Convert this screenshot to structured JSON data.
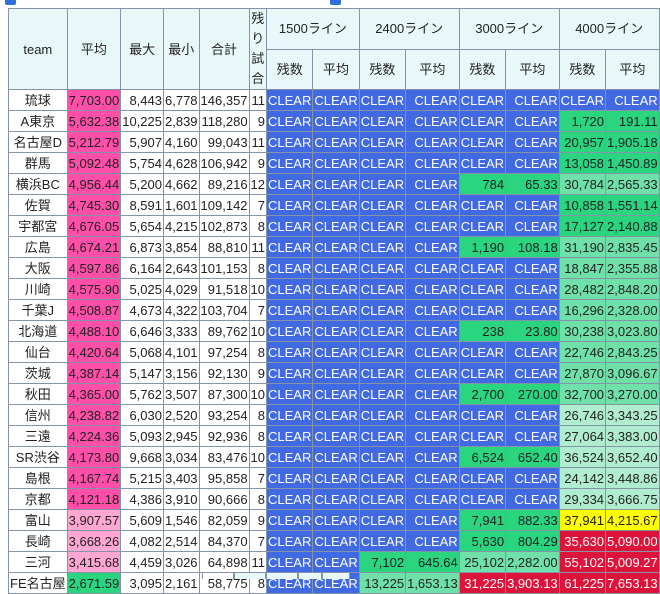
{
  "colors": {
    "blue": "#4169e1",
    "green": "#2bd580",
    "mid": "#6fe1a8",
    "pale": "#b0edcf",
    "yellow": "#ffff00",
    "red": "#dc143c",
    "pink": "#ff4fa8",
    "lightpink": "#ffa6d2",
    "header": "#e8f8f8"
  },
  "header": {
    "team": "team",
    "avg": "平均",
    "max": "最大",
    "min": "最小",
    "total": "合計",
    "remaining": "残り試合",
    "lines": [
      "1500ライン",
      "2400ライン",
      "3000ライン",
      "4000ライン"
    ],
    "count": "残数",
    "line_avg": "平均"
  },
  "rows": [
    {
      "team": "琉球",
      "avg": "7,703.00",
      "avg_color": "pink",
      "max": "8,443",
      "min": "6,778",
      "total": "146,357",
      "remaining": "11",
      "lines": [
        [
          "CLEAR",
          "CLEAR",
          "blue"
        ],
        [
          "CLEAR",
          "CLEAR",
          "blue"
        ],
        [
          "CLEAR",
          "CLEAR",
          "blue"
        ],
        [
          "CLEAR",
          "CLEAR",
          "blue"
        ]
      ]
    },
    {
      "team": "A東京",
      "avg": "5,632.38",
      "avg_color": "pink",
      "max": "10,225",
      "min": "2,839",
      "total": "118,280",
      "remaining": "9",
      "lines": [
        [
          "CLEAR",
          "CLEAR",
          "blue"
        ],
        [
          "CLEAR",
          "CLEAR",
          "blue"
        ],
        [
          "CLEAR",
          "CLEAR",
          "blue"
        ],
        [
          "1,720",
          "191.11",
          "green"
        ]
      ]
    },
    {
      "team": "名古屋D",
      "avg": "5,212.79",
      "avg_color": "pink",
      "max": "5,907",
      "min": "4,160",
      "total": "99,043",
      "remaining": "11",
      "lines": [
        [
          "CLEAR",
          "CLEAR",
          "blue"
        ],
        [
          "CLEAR",
          "CLEAR",
          "blue"
        ],
        [
          "CLEAR",
          "CLEAR",
          "blue"
        ],
        [
          "20,957",
          "1,905.18",
          "green"
        ]
      ]
    },
    {
      "team": "群馬",
      "avg": "5,092.48",
      "avg_color": "pink",
      "max": "5,754",
      "min": "4,628",
      "total": "106,942",
      "remaining": "9",
      "lines": [
        [
          "CLEAR",
          "CLEAR",
          "blue"
        ],
        [
          "CLEAR",
          "CLEAR",
          "blue"
        ],
        [
          "CLEAR",
          "CLEAR",
          "blue"
        ],
        [
          "13,058",
          "1,450.89",
          "green"
        ]
      ]
    },
    {
      "team": "横浜BC",
      "avg": "4,956.44",
      "avg_color": "pink",
      "max": "5,200",
      "min": "4,662",
      "total": "89,216",
      "remaining": "12",
      "lines": [
        [
          "CLEAR",
          "CLEAR",
          "blue"
        ],
        [
          "CLEAR",
          "CLEAR",
          "blue"
        ],
        [
          "784",
          "65.33",
          "green"
        ],
        [
          "30,784",
          "2,565.33",
          "mid"
        ]
      ]
    },
    {
      "team": "佐賀",
      "avg": "4,745.30",
      "avg_color": "pink",
      "max": "8,591",
      "min": "1,601",
      "total": "109,142",
      "remaining": "7",
      "lines": [
        [
          "CLEAR",
          "CLEAR",
          "blue"
        ],
        [
          "CLEAR",
          "CLEAR",
          "blue"
        ],
        [
          "CLEAR",
          "CLEAR",
          "blue"
        ],
        [
          "10,858",
          "1,551.14",
          "green"
        ]
      ]
    },
    {
      "team": "宇都宮",
      "avg": "4,676.05",
      "avg_color": "pink",
      "max": "5,654",
      "min": "4,215",
      "total": "102,873",
      "remaining": "8",
      "lines": [
        [
          "CLEAR",
          "CLEAR",
          "blue"
        ],
        [
          "CLEAR",
          "CLEAR",
          "blue"
        ],
        [
          "CLEAR",
          "CLEAR",
          "blue"
        ],
        [
          "17,127",
          "2,140.88",
          "green"
        ]
      ]
    },
    {
      "team": "広島",
      "avg": "4,674.21",
      "avg_color": "pink",
      "max": "6,873",
      "min": "3,854",
      "total": "88,810",
      "remaining": "11",
      "lines": [
        [
          "CLEAR",
          "CLEAR",
          "blue"
        ],
        [
          "CLEAR",
          "CLEAR",
          "blue"
        ],
        [
          "1,190",
          "108.18",
          "green"
        ],
        [
          "31,190",
          "2,835.45",
          "mid"
        ]
      ]
    },
    {
      "team": "大阪",
      "avg": "4,597.86",
      "avg_color": "pink",
      "max": "6,164",
      "min": "2,643",
      "total": "101,153",
      "remaining": "8",
      "lines": [
        [
          "CLEAR",
          "CLEAR",
          "blue"
        ],
        [
          "CLEAR",
          "CLEAR",
          "blue"
        ],
        [
          "CLEAR",
          "CLEAR",
          "blue"
        ],
        [
          "18,847",
          "2,355.88",
          "mid"
        ]
      ]
    },
    {
      "team": "川崎",
      "avg": "4,575.90",
      "avg_color": "pink",
      "max": "5,025",
      "min": "4,029",
      "total": "91,518",
      "remaining": "10",
      "lines": [
        [
          "CLEAR",
          "CLEAR",
          "blue"
        ],
        [
          "CLEAR",
          "CLEAR",
          "blue"
        ],
        [
          "CLEAR",
          "CLEAR",
          "blue"
        ],
        [
          "28,482",
          "2,848.20",
          "mid"
        ]
      ]
    },
    {
      "team": "千葉J",
      "avg": "4,508.87",
      "avg_color": "pink",
      "max": "4,673",
      "min": "4,322",
      "total": "103,704",
      "remaining": "7",
      "lines": [
        [
          "CLEAR",
          "CLEAR",
          "blue"
        ],
        [
          "CLEAR",
          "CLEAR",
          "blue"
        ],
        [
          "CLEAR",
          "CLEAR",
          "blue"
        ],
        [
          "16,296",
          "2,328.00",
          "mid"
        ]
      ]
    },
    {
      "team": "北海道",
      "avg": "4,488.10",
      "avg_color": "pink",
      "max": "6,646",
      "min": "3,333",
      "total": "89,762",
      "remaining": "10",
      "lines": [
        [
          "CLEAR",
          "CLEAR",
          "blue"
        ],
        [
          "CLEAR",
          "CLEAR",
          "blue"
        ],
        [
          "238",
          "23.80",
          "green"
        ],
        [
          "30,238",
          "3,023.80",
          "mid"
        ]
      ]
    },
    {
      "team": "仙台",
      "avg": "4,420.64",
      "avg_color": "pink",
      "max": "5,068",
      "min": "4,101",
      "total": "97,254",
      "remaining": "8",
      "lines": [
        [
          "CLEAR",
          "CLEAR",
          "blue"
        ],
        [
          "CLEAR",
          "CLEAR",
          "blue"
        ],
        [
          "CLEAR",
          "CLEAR",
          "blue"
        ],
        [
          "22,746",
          "2,843.25",
          "mid"
        ]
      ]
    },
    {
      "team": "茨城",
      "avg": "4,387.14",
      "avg_color": "pink",
      "max": "5,147",
      "min": "3,156",
      "total": "92,130",
      "remaining": "9",
      "lines": [
        [
          "CLEAR",
          "CLEAR",
          "blue"
        ],
        [
          "CLEAR",
          "CLEAR",
          "blue"
        ],
        [
          "CLEAR",
          "CLEAR",
          "blue"
        ],
        [
          "27,870",
          "3,096.67",
          "mid"
        ]
      ]
    },
    {
      "team": "秋田",
      "avg": "4,365.00",
      "avg_color": "pink",
      "max": "5,762",
      "min": "3,507",
      "total": "87,300",
      "remaining": "10",
      "lines": [
        [
          "CLEAR",
          "CLEAR",
          "blue"
        ],
        [
          "CLEAR",
          "CLEAR",
          "blue"
        ],
        [
          "2,700",
          "270.00",
          "green"
        ],
        [
          "32,700",
          "3,270.00",
          "mid"
        ]
      ]
    },
    {
      "team": "信州",
      "avg": "4,238.82",
      "avg_color": "pink",
      "max": "6,030",
      "min": "2,520",
      "total": "93,254",
      "remaining": "8",
      "lines": [
        [
          "CLEAR",
          "CLEAR",
          "blue"
        ],
        [
          "CLEAR",
          "CLEAR",
          "blue"
        ],
        [
          "CLEAR",
          "CLEAR",
          "blue"
        ],
        [
          "26,746",
          "3,343.25",
          "pale"
        ]
      ]
    },
    {
      "team": "三遠",
      "avg": "4,224.36",
      "avg_color": "pink",
      "max": "5,093",
      "min": "2,945",
      "total": "92,936",
      "remaining": "8",
      "lines": [
        [
          "CLEAR",
          "CLEAR",
          "blue"
        ],
        [
          "CLEAR",
          "CLEAR",
          "blue"
        ],
        [
          "CLEAR",
          "CLEAR",
          "blue"
        ],
        [
          "27,064",
          "3,383.00",
          "pale"
        ]
      ]
    },
    {
      "team": "SR渋谷",
      "avg": "4,173.80",
      "avg_color": "pink",
      "max": "9,668",
      "min": "3,034",
      "total": "83,476",
      "remaining": "10",
      "lines": [
        [
          "CLEAR",
          "CLEAR",
          "blue"
        ],
        [
          "CLEAR",
          "CLEAR",
          "blue"
        ],
        [
          "6,524",
          "652.40",
          "green"
        ],
        [
          "36,524",
          "3,652.40",
          "pale"
        ]
      ]
    },
    {
      "team": "島根",
      "avg": "4,167.74",
      "avg_color": "pink",
      "max": "5,215",
      "min": "3,403",
      "total": "95,858",
      "remaining": "7",
      "lines": [
        [
          "CLEAR",
          "CLEAR",
          "blue"
        ],
        [
          "CLEAR",
          "CLEAR",
          "blue"
        ],
        [
          "CLEAR",
          "CLEAR",
          "blue"
        ],
        [
          "24,142",
          "3,448.86",
          "pale"
        ]
      ]
    },
    {
      "team": "京都",
      "avg": "4,121.18",
      "avg_color": "pink",
      "max": "4,386",
      "min": "3,910",
      "total": "90,666",
      "remaining": "8",
      "lines": [
        [
          "CLEAR",
          "CLEAR",
          "blue"
        ],
        [
          "CLEAR",
          "CLEAR",
          "blue"
        ],
        [
          "CLEAR",
          "CLEAR",
          "blue"
        ],
        [
          "29,334",
          "3,666.75",
          "pale"
        ]
      ]
    },
    {
      "team": "富山",
      "avg": "3,907.57",
      "avg_color": "lightpink",
      "max": "5,609",
      "min": "1,546",
      "total": "82,059",
      "remaining": "9",
      "lines": [
        [
          "CLEAR",
          "CLEAR",
          "blue"
        ],
        [
          "CLEAR",
          "CLEAR",
          "blue"
        ],
        [
          "7,941",
          "882.33",
          "green"
        ],
        [
          "37,941",
          "4,215.67",
          "yellow"
        ]
      ]
    },
    {
      "team": "長崎",
      "avg": "3,668.26",
      "avg_color": "lightpink",
      "max": "4,082",
      "min": "2,514",
      "total": "84,370",
      "remaining": "7",
      "lines": [
        [
          "CLEAR",
          "CLEAR",
          "blue"
        ],
        [
          "CLEAR",
          "CLEAR",
          "blue"
        ],
        [
          "5,630",
          "804.29",
          "green"
        ],
        [
          "35,630",
          "5,090.00",
          "red"
        ]
      ]
    },
    {
      "team": "三河",
      "avg": "3,415.68",
      "avg_color": "lightpink",
      "max": "4,459",
      "min": "3,026",
      "total": "64,898",
      "remaining": "11",
      "lines": [
        [
          "CLEAR",
          "CLEAR",
          "blue"
        ],
        [
          "7,102",
          "645.64",
          "green"
        ],
        [
          "25,102",
          "2,282.00",
          "mid"
        ],
        [
          "55,102",
          "5,009.27",
          "red"
        ]
      ]
    },
    {
      "team": "FE名古屋",
      "avg": "2,671.59",
      "avg_color": "green",
      "max": "3,095",
      "min": "2,161",
      "total": "58,775",
      "remaining": "8",
      "lines": [
        [
          "CLEAR",
          "CLEAR",
          "blue"
        ],
        [
          "13,225",
          "1,653.13",
          "mid"
        ],
        [
          "31,225",
          "3,903.13",
          "red"
        ],
        [
          "61,225",
          "7,653.13",
          "red"
        ]
      ]
    }
  ]
}
